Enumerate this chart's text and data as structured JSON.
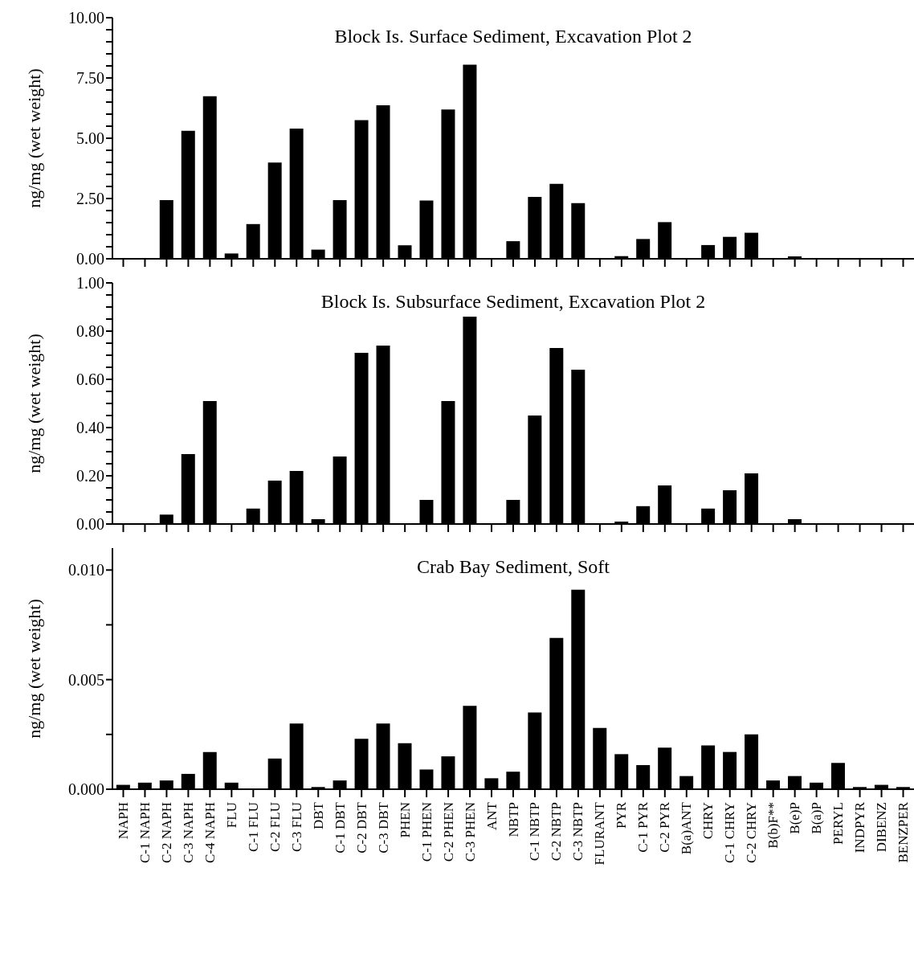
{
  "chart_data": [
    {
      "type": "bar",
      "title": "Block Is. Surface Sediment, Excavation Plot 2",
      "ylabel": "ng/mg (wet weight)",
      "categories": [
        null,
        null,
        null,
        null,
        null,
        null,
        null,
        null,
        null,
        null,
        null,
        null,
        null,
        null,
        null,
        null,
        null,
        null,
        null,
        null,
        null,
        null,
        null,
        null,
        null,
        null,
        null,
        null,
        null,
        null,
        null,
        null,
        null,
        null,
        null,
        null,
        null
      ],
      "values": [
        0,
        0,
        2.43,
        5.31,
        6.74,
        0.22,
        1.44,
        3.99,
        5.4,
        0.38,
        2.43,
        5.75,
        6.37,
        0.56,
        2.42,
        6.19,
        8.05,
        0,
        0.73,
        2.57,
        3.11,
        2.31,
        0,
        0.11,
        0.82,
        1.52,
        0,
        0.57,
        0.91,
        1.08,
        0,
        0.1,
        0,
        0,
        0,
        0,
        0
      ],
      "color": "#000000",
      "ylim": [
        0,
        10
      ],
      "yticks": [
        {
          "value": 0,
          "label": "0.00"
        },
        {
          "value": 0.5,
          "label": null
        },
        {
          "value": 1,
          "label": null
        },
        {
          "value": 1.5,
          "label": null
        },
        {
          "value": 2,
          "label": null
        },
        {
          "value": 2.5,
          "label": "2.50"
        },
        {
          "value": 3,
          "label": null
        },
        {
          "value": 3.5,
          "label": null
        },
        {
          "value": 4,
          "label": null
        },
        {
          "value": 4.5,
          "label": null
        },
        {
          "value": 5,
          "label": "5.00"
        },
        {
          "value": 5.5,
          "label": null
        },
        {
          "value": 6,
          "label": null
        },
        {
          "value": 6.5,
          "label": null
        },
        {
          "value": 7,
          "label": null
        },
        {
          "value": 7.5,
          "label": "7.50"
        },
        {
          "value": 8,
          "label": null
        },
        {
          "value": 8.5,
          "label": null
        },
        {
          "value": 9,
          "label": null
        },
        {
          "value": 9.5,
          "label": null
        },
        {
          "value": 10,
          "label": "10.00"
        }
      ],
      "grid": false,
      "legend": false
    },
    {
      "type": "bar",
      "title": "Block Is. Subsurface Sediment, Excavation Plot 2",
      "ylabel": "ng/mg (wet weight)",
      "categories": [
        null,
        null,
        null,
        null,
        null,
        null,
        null,
        null,
        null,
        null,
        null,
        null,
        null,
        null,
        null,
        null,
        null,
        null,
        null,
        null,
        null,
        null,
        null,
        null,
        null,
        null,
        null,
        null,
        null,
        null,
        null,
        null,
        null,
        null,
        null,
        null,
        null
      ],
      "values": [
        0,
        0,
        0.039,
        0.29,
        0.51,
        0,
        0.064,
        0.18,
        0.22,
        0.02,
        0.28,
        0.71,
        0.74,
        0,
        0.1,
        0.51,
        0.86,
        0,
        0.1,
        0.45,
        0.73,
        0.64,
        0,
        0.01,
        0.074,
        0.16,
        0,
        0.064,
        0.14,
        0.21,
        0,
        0.02,
        0,
        0,
        0,
        0,
        0
      ],
      "color": "#000000",
      "ylim": [
        0,
        1
      ],
      "yticks": [
        {
          "value": 0,
          "label": "0.00"
        },
        {
          "value": 0.05,
          "label": null
        },
        {
          "value": 0.1,
          "label": null
        },
        {
          "value": 0.15,
          "label": null
        },
        {
          "value": 0.2,
          "label": "0.20"
        },
        {
          "value": 0.25,
          "label": null
        },
        {
          "value": 0.3,
          "label": null
        },
        {
          "value": 0.35,
          "label": null
        },
        {
          "value": 0.4,
          "label": "0.40"
        },
        {
          "value": 0.45,
          "label": null
        },
        {
          "value": 0.5,
          "label": null
        },
        {
          "value": 0.55,
          "label": null
        },
        {
          "value": 0.6,
          "label": "0.60"
        },
        {
          "value": 0.65,
          "label": null
        },
        {
          "value": 0.7,
          "label": null
        },
        {
          "value": 0.75,
          "label": null
        },
        {
          "value": 0.8,
          "label": "0.80"
        },
        {
          "value": 0.85,
          "label": null
        },
        {
          "value": 0.9,
          "label": null
        },
        {
          "value": 0.95,
          "label": null
        },
        {
          "value": 1,
          "label": "1.00"
        }
      ],
      "grid": false,
      "legend": false
    },
    {
      "type": "bar",
      "title": "Crab Bay Sediment, Soft",
      "ylabel": "ng/mg (wet weight)",
      "categories": [
        "NAPH",
        "C-1 NAPH",
        "C-2 NAPH",
        "C-3 NAPH",
        "C-4 NAPH",
        "FLU",
        "C-1 FLU",
        "C-2 FLU",
        "C-3 FLU",
        "DBT",
        "C-1 DBT",
        "C-2 DBT",
        "C-3 DBT",
        "PHEN",
        "C-1 PHEN",
        "C-2 PHEN",
        "C-3 PHEN",
        "ANT",
        "NBTP",
        "C-1 NBTP",
        "C-2 NBTP",
        "C-3 NBTP",
        "FLURANT",
        "PYR",
        "C-1 PYR",
        "C-2 PYR",
        "B(a)ANT",
        "CHRY",
        "C-1 CHRY",
        "C-2 CHRY",
        "B(b)F**",
        "B(e)P",
        "B(a)P",
        "PERYL",
        "INDPYR",
        "DIBENZ",
        "BENZPER"
      ],
      "values": [
        0.0002,
        0.0003,
        0.0004,
        0.0007,
        0.0017,
        0.0003,
        0,
        0.0014,
        0.003,
        0.0001,
        0.0004,
        0.0023,
        0.003,
        0.0021,
        0.0009,
        0.0015,
        0.0038,
        0.0005,
        0.0008,
        0.0035,
        0.0069,
        0.0091,
        0.0028,
        0.0016,
        0.0011,
        0.0019,
        0.0006,
        0.002,
        0.0017,
        0.0025,
        0.0004,
        0.0006,
        0.0003,
        0.0012,
        0.0001,
        0.0002,
        0.0001
      ],
      "color": "#000000",
      "ylim": [
        0,
        0.011
      ],
      "yticks": [
        {
          "value": 0,
          "label": "0.000"
        },
        {
          "value": 0.0025,
          "label": null
        },
        {
          "value": 0.005,
          "label": "0.005"
        },
        {
          "value": 0.0075,
          "label": null
        },
        {
          "value": 0.01,
          "label": "0.010"
        }
      ],
      "grid": false,
      "legend": false
    }
  ]
}
